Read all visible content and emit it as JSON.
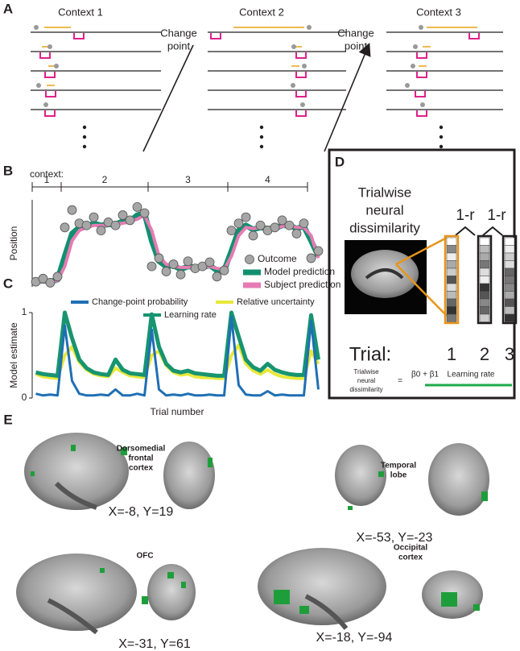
{
  "figure": {
    "panel_a": {
      "label": "A",
      "contexts": [
        "Context 1",
        "Context 2",
        "Context 3"
      ],
      "change_point": [
        "Change",
        "point"
      ]
    },
    "panel_d": {
      "label": "D",
      "title": [
        "Trialwise",
        "neural",
        "dissimilarity"
      ],
      "one_minus_r": "1-r",
      "trial_label": "Trial:",
      "trials": [
        "1",
        "2",
        "3"
      ],
      "equation": {
        "lhs": [
          "Trialwise",
          "neural",
          "dissimilarity"
        ],
        "equals": "=",
        "betas": "β0 + β1",
        "regressor": "Learning rate"
      }
    },
    "panel_e": {
      "label": "E",
      "regions": [
        {
          "name": [
            "Dorsomedial",
            "frontal",
            "cortex"
          ],
          "coords": "X=-8, Y=19"
        },
        {
          "name": [
            "Temporal",
            "lobe"
          ],
          "coords": "X=-53, Y=-23"
        },
        {
          "name": [
            "OFC"
          ],
          "coords": "X=-31, Y=61"
        },
        {
          "name": [
            "Occipital",
            "cortex"
          ],
          "coords": "X=-18, Y=-94"
        }
      ]
    }
  },
  "chart_data": [
    {
      "type": "line",
      "panel_label": "B",
      "context_label": "context:",
      "contexts": [
        "1",
        "2",
        "3",
        "4"
      ],
      "context_bounds": [
        0.5,
        4.5,
        16.5,
        27.5,
        38.5
      ],
      "ylabel": "Position",
      "x": [
        1,
        2,
        3,
        4,
        5,
        6,
        7,
        8,
        9,
        10,
        11,
        12,
        13,
        14,
        15,
        16,
        17,
        18,
        19,
        20,
        21,
        22,
        23,
        24,
        25,
        26,
        27,
        28,
        29,
        30,
        31,
        32,
        33,
        34,
        35,
        36,
        37,
        38,
        39,
        40
      ],
      "xlim": [
        0.5,
        40.5
      ],
      "ylim": [
        0,
        0.85
      ],
      "series": [
        {
          "name": "Outcome",
          "color": "#a6a6a6",
          "mode": "markers",
          "values": [
            0.05,
            0.08,
            0.04,
            0.1,
            0.58,
            0.75,
            0.62,
            0.6,
            0.68,
            0.55,
            0.63,
            0.6,
            0.7,
            0.65,
            0.78,
            0.72,
            0.2,
            0.28,
            0.15,
            0.22,
            0.12,
            0.25,
            0.18,
            0.2,
            0.24,
            0.1,
            0.16,
            0.55,
            0.62,
            0.68,
            0.5,
            0.6,
            0.55,
            0.58,
            0.65,
            0.6,
            0.52,
            0.62,
            0.28,
            0.35
          ]
        },
        {
          "name": "Model prediction",
          "color": "#11906f",
          "mode": "line",
          "values": [
            0.05,
            0.06,
            0.05,
            0.07,
            0.3,
            0.52,
            0.58,
            0.59,
            0.62,
            0.6,
            0.61,
            0.61,
            0.64,
            0.64,
            0.7,
            0.72,
            0.45,
            0.25,
            0.2,
            0.21,
            0.17,
            0.2,
            0.19,
            0.19,
            0.21,
            0.16,
            0.16,
            0.35,
            0.55,
            0.6,
            0.56,
            0.58,
            0.57,
            0.57,
            0.6,
            0.6,
            0.57,
            0.59,
            0.45,
            0.3
          ]
        },
        {
          "name": "Subject prediction",
          "color": "#e67bb3",
          "mode": "line",
          "values": [
            0.04,
            0.05,
            0.05,
            0.06,
            0.2,
            0.45,
            0.55,
            0.58,
            0.6,
            0.6,
            0.6,
            0.62,
            0.62,
            0.64,
            0.66,
            0.7,
            0.55,
            0.3,
            0.22,
            0.2,
            0.19,
            0.19,
            0.2,
            0.19,
            0.2,
            0.18,
            0.17,
            0.3,
            0.5,
            0.58,
            0.57,
            0.58,
            0.58,
            0.57,
            0.59,
            0.6,
            0.58,
            0.58,
            0.5,
            0.28
          ]
        }
      ]
    },
    {
      "type": "line",
      "panel_label": "C",
      "xlabel": "Trial number",
      "ylabel": "Model estimate",
      "x": [
        1,
        2,
        3,
        4,
        5,
        6,
        7,
        8,
        9,
        10,
        11,
        12,
        13,
        14,
        15,
        16,
        17,
        18,
        19,
        20,
        21,
        22,
        23,
        24,
        25,
        26,
        27,
        28,
        29,
        30,
        31,
        32,
        33,
        34,
        35,
        36,
        37,
        38,
        39,
        40
      ],
      "xlim": [
        0.5,
        40.5
      ],
      "ylim": [
        0,
        1
      ],
      "yticks": [
        0,
        1
      ],
      "series": [
        {
          "name": "Change-point probability",
          "color": "#1f6fb4",
          "values": [
            0.05,
            0.03,
            0.04,
            0.03,
            0.85,
            0.2,
            0.05,
            0.03,
            0.03,
            0.04,
            0.03,
            0.1,
            0.03,
            0.03,
            0.05,
            0.03,
            0.8,
            0.1,
            0.03,
            0.04,
            0.03,
            0.05,
            0.03,
            0.03,
            0.04,
            0.03,
            0.03,
            0.95,
            0.15,
            0.04,
            0.03,
            0.03,
            0.08,
            0.03,
            0.04,
            0.03,
            0.03,
            0.03,
            0.9,
            0.1
          ]
        },
        {
          "name": "Relative uncertainty",
          "color": "#e8e83a",
          "values": [
            0.28,
            0.25,
            0.24,
            0.23,
            0.5,
            0.6,
            0.42,
            0.33,
            0.28,
            0.26,
            0.25,
            0.35,
            0.3,
            0.26,
            0.25,
            0.24,
            0.5,
            0.55,
            0.38,
            0.3,
            0.27,
            0.28,
            0.25,
            0.24,
            0.24,
            0.23,
            0.23,
            0.5,
            0.62,
            0.4,
            0.32,
            0.28,
            0.33,
            0.28,
            0.25,
            0.24,
            0.23,
            0.23,
            0.55,
            0.4
          ]
        },
        {
          "name": "Learning rate",
          "color": "#179470",
          "values": [
            0.3,
            0.28,
            0.27,
            0.26,
            1.0,
            0.7,
            0.45,
            0.35,
            0.3,
            0.28,
            0.27,
            0.45,
            0.33,
            0.29,
            0.28,
            0.27,
            0.98,
            0.6,
            0.4,
            0.32,
            0.3,
            0.32,
            0.29,
            0.28,
            0.27,
            0.26,
            0.26,
            1.0,
            0.72,
            0.45,
            0.36,
            0.32,
            0.4,
            0.33,
            0.3,
            0.28,
            0.27,
            0.27,
            0.97,
            0.45
          ]
        }
      ]
    }
  ]
}
